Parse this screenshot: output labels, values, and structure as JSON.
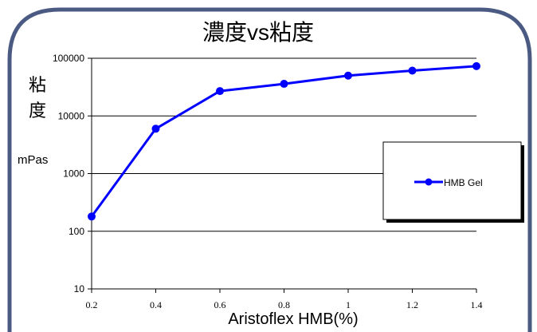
{
  "chart_data": {
    "type": "line",
    "title": "濃度vs粘度",
    "xlabel": "Aristoflex HMB(%)",
    "ylabel_chars": [
      "粘",
      "度"
    ],
    "ylabel_unit": "mPas",
    "y_scale": "log",
    "ylim": [
      10,
      100000
    ],
    "xlim": [
      0.2,
      1.4
    ],
    "x_tick_labels": [
      "0.2",
      "0.4",
      "0.6",
      "0.8",
      "1",
      "1.2",
      "1.4"
    ],
    "y_tick_labels": [
      "10",
      "100",
      "1000",
      "10000",
      "100000"
    ],
    "grid": "horizontal",
    "legend_position": "right",
    "series": [
      {
        "name": "HMB Gel",
        "color": "#0000ff",
        "marker": "circle",
        "x": [
          0.2,
          0.4,
          0.6,
          0.8,
          1.0,
          1.2,
          1.4
        ],
        "y": [
          180,
          6000,
          27000,
          36000,
          50000,
          61000,
          73000
        ]
      }
    ]
  },
  "colors": {
    "frame_border": "#4a5a82",
    "line": "#0000ff",
    "axis": "#000000",
    "grid": "#000000"
  }
}
